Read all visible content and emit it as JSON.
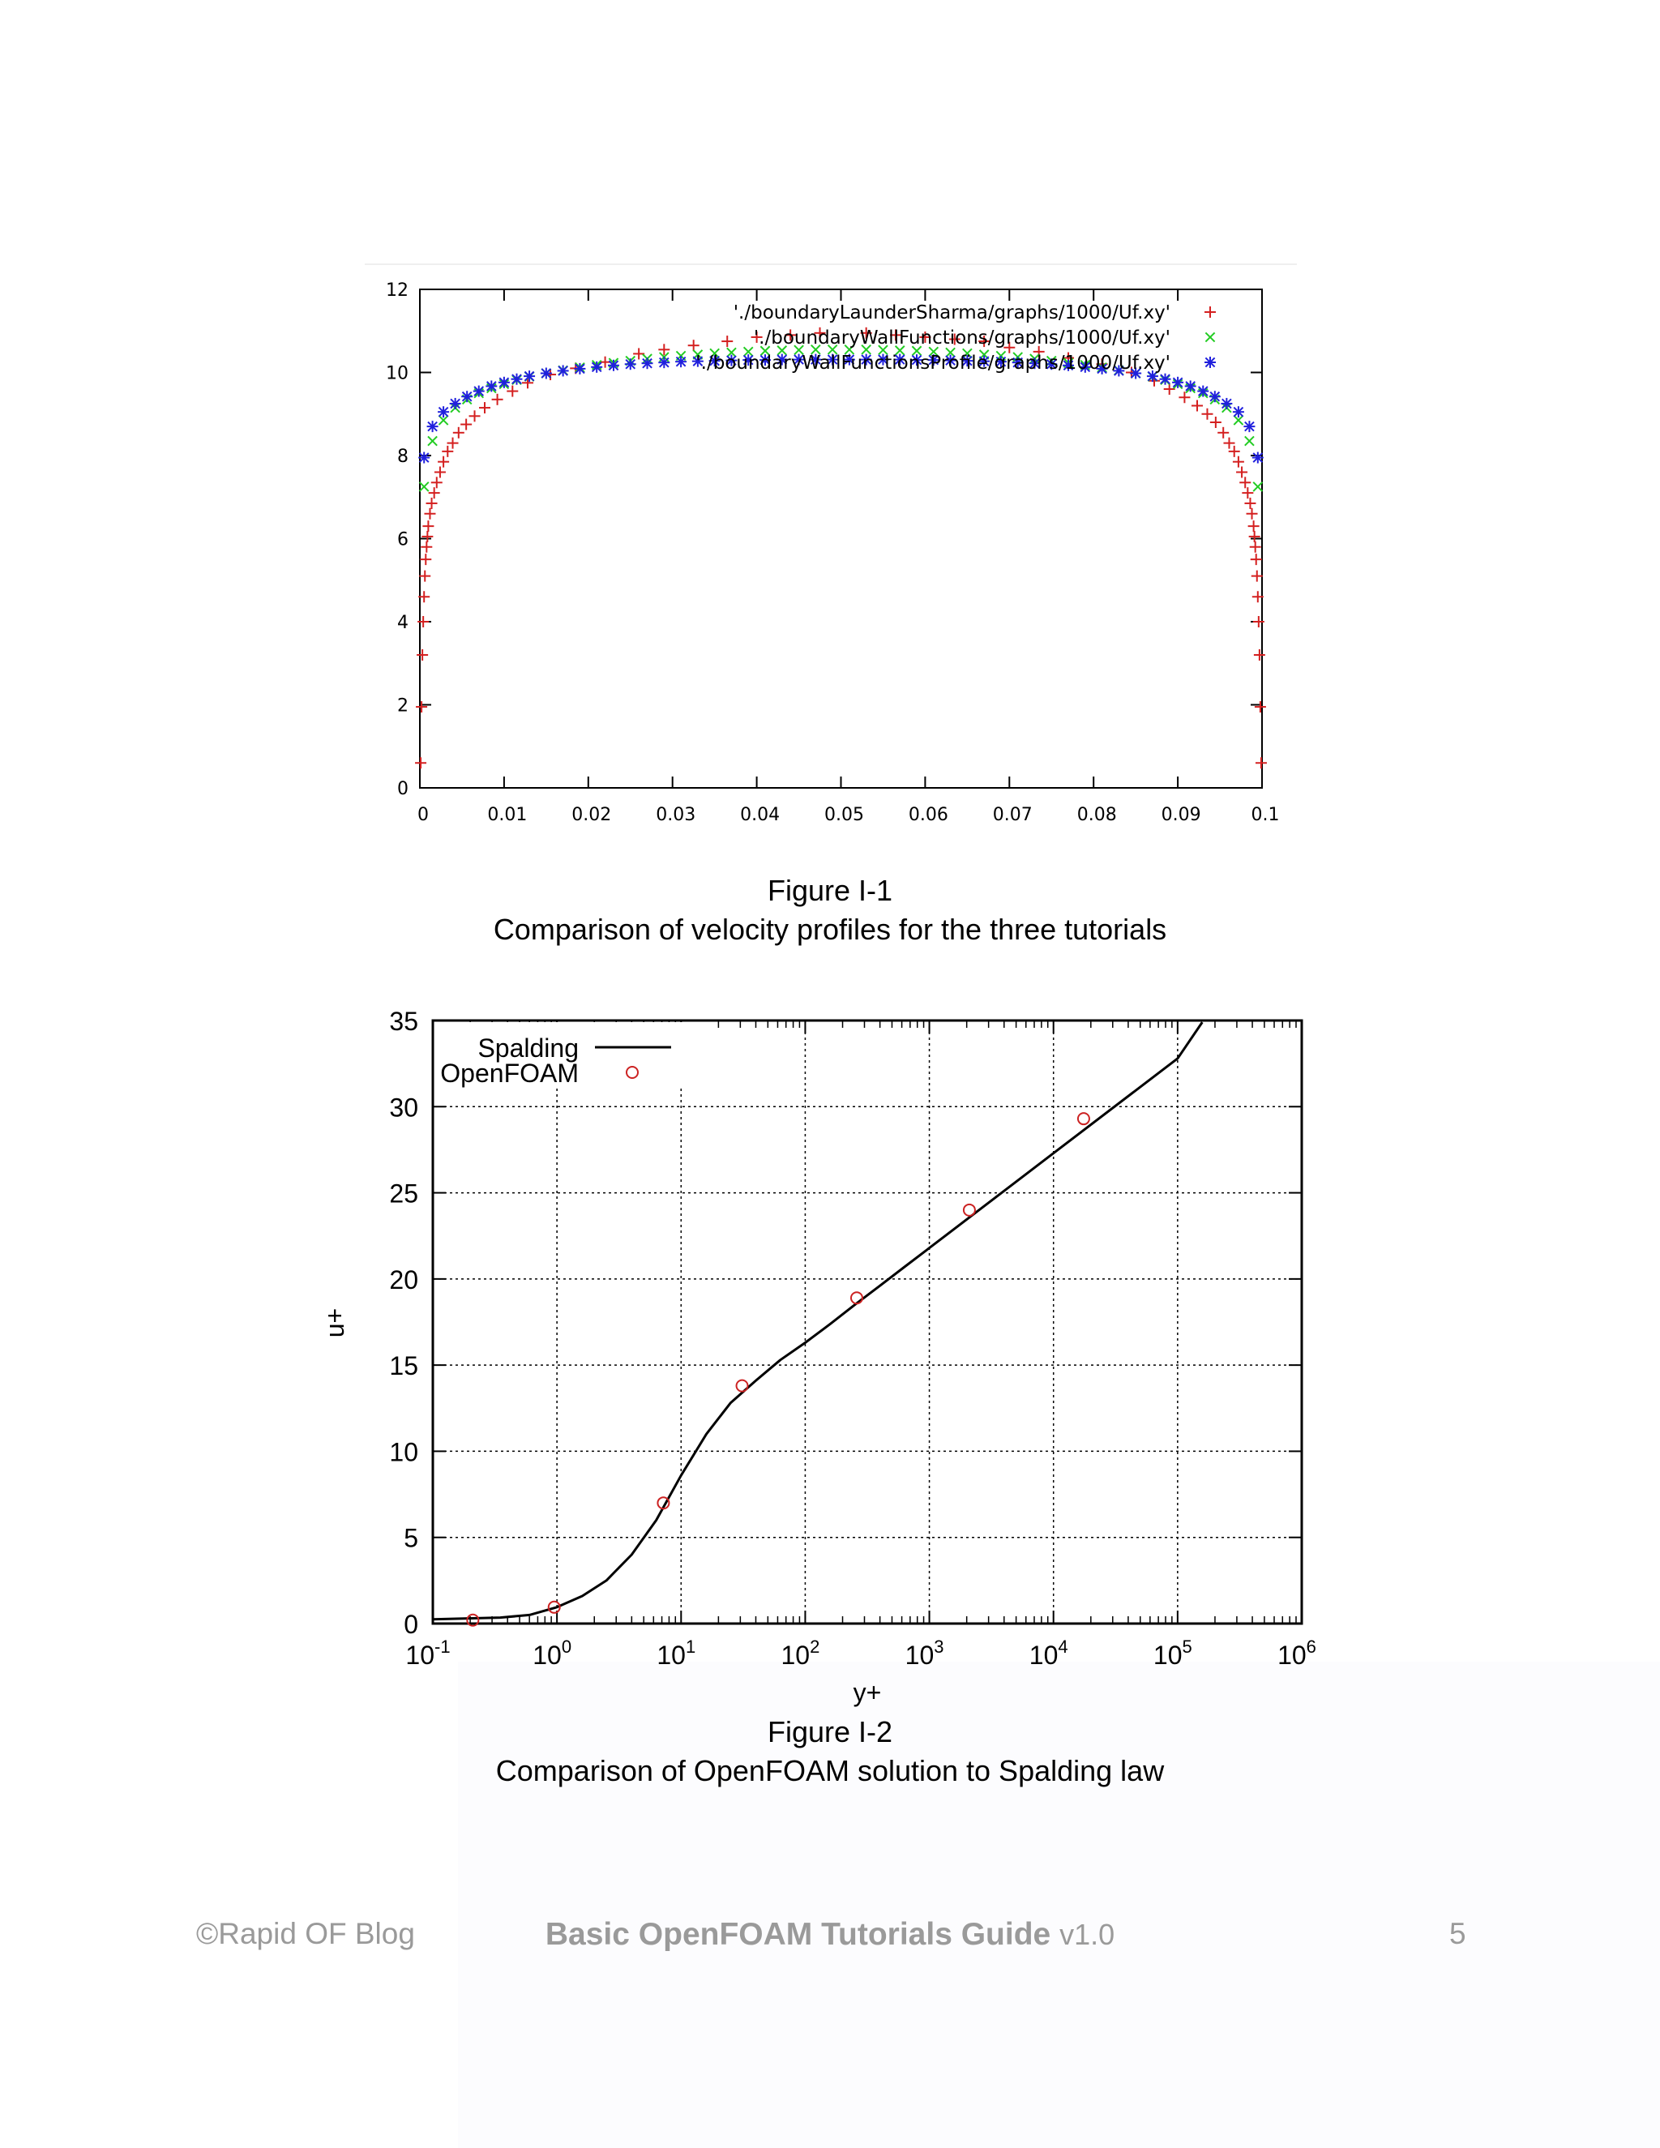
{
  "chart_data": [
    {
      "type": "scatter",
      "title": "",
      "xlabel": "",
      "ylabel": "",
      "xlim": [
        0,
        0.1
      ],
      "ylim": [
        0,
        12
      ],
      "x_ticks": [
        "0",
        "0.01",
        "0.02",
        "0.03",
        "0.04",
        "0.05",
        "0.06",
        "0.07",
        "0.08",
        "0.09",
        "0.1"
      ],
      "y_ticks": [
        "0",
        "2",
        "4",
        "6",
        "8",
        "10",
        "12"
      ],
      "grid": false,
      "legend_position": "top-right",
      "series": [
        {
          "name": "'./boundaryLaunderSharma/graphs/1000/Uf.xy'",
          "marker": "+",
          "color": "#d42020",
          "points": [
            [
              0.0001,
              0.6
            ],
            [
              0.0002,
              1.95
            ],
            [
              0.0003,
              3.2
            ],
            [
              0.0004,
              4.0
            ],
            [
              0.0005,
              4.6
            ],
            [
              0.0006,
              5.1
            ],
            [
              0.0007,
              5.5
            ],
            [
              0.0008,
              5.8
            ],
            [
              0.0009,
              6.05
            ],
            [
              0.001,
              6.3
            ],
            [
              0.0012,
              6.6
            ],
            [
              0.0014,
              6.85
            ],
            [
              0.0017,
              7.1
            ],
            [
              0.002,
              7.35
            ],
            [
              0.0024,
              7.6
            ],
            [
              0.0028,
              7.85
            ],
            [
              0.0033,
              8.1
            ],
            [
              0.0039,
              8.3
            ],
            [
              0.0046,
              8.55
            ],
            [
              0.0055,
              8.75
            ],
            [
              0.0065,
              8.95
            ],
            [
              0.0077,
              9.15
            ],
            [
              0.0092,
              9.35
            ],
            [
              0.011,
              9.55
            ],
            [
              0.0128,
              9.75
            ],
            [
              0.0155,
              9.95
            ],
            [
              0.0185,
              10.1
            ],
            [
              0.022,
              10.25
            ],
            [
              0.026,
              10.45
            ],
            [
              0.029,
              10.55
            ],
            [
              0.0325,
              10.65
            ],
            [
              0.0365,
              10.75
            ],
            [
              0.04,
              10.85
            ],
            [
              0.044,
              10.9
            ],
            [
              0.0475,
              10.95
            ],
            [
              0.053,
              10.95
            ],
            [
              0.0565,
              10.9
            ],
            [
              0.06,
              10.85
            ],
            [
              0.0635,
              10.8
            ],
            [
              0.067,
              10.75
            ],
            [
              0.07,
              10.6
            ],
            [
              0.0735,
              10.5
            ],
            [
              0.077,
              10.35
            ],
            [
              0.081,
              10.2
            ],
            [
              0.0845,
              10.0
            ],
            [
              0.0872,
              9.8
            ],
            [
              0.089,
              9.6
            ],
            [
              0.0908,
              9.4
            ],
            [
              0.0923,
              9.2
            ],
            [
              0.0935,
              9.0
            ],
            [
              0.0945,
              8.8
            ],
            [
              0.0954,
              8.55
            ],
            [
              0.0961,
              8.3
            ],
            [
              0.0967,
              8.1
            ],
            [
              0.0972,
              7.85
            ],
            [
              0.0976,
              7.6
            ],
            [
              0.098,
              7.35
            ],
            [
              0.0983,
              7.1
            ],
            [
              0.0986,
              6.85
            ],
            [
              0.0988,
              6.6
            ],
            [
              0.099,
              6.3
            ],
            [
              0.0991,
              6.05
            ],
            [
              0.0992,
              5.8
            ],
            [
              0.0993,
              5.5
            ],
            [
              0.0994,
              5.1
            ],
            [
              0.0995,
              4.6
            ],
            [
              0.0996,
              4.0
            ],
            [
              0.0997,
              3.2
            ],
            [
              0.0998,
              1.95
            ],
            [
              0.0999,
              0.6
            ]
          ]
        },
        {
          "name": "'./boundaryWallFunctions/graphs/1000/Uf.xy'",
          "marker": "x",
          "color": "#22cc22",
          "points": [
            [
              0.0005,
              7.25
            ],
            [
              0.0015,
              8.35
            ],
            [
              0.0028,
              8.85
            ],
            [
              0.0042,
              9.15
            ],
            [
              0.0056,
              9.35
            ],
            [
              0.007,
              9.5
            ],
            [
              0.0085,
              9.62
            ],
            [
              0.01,
              9.72
            ],
            [
              0.0115,
              9.82
            ],
            [
              0.013,
              9.9
            ],
            [
              0.015,
              9.98
            ],
            [
              0.017,
              10.05
            ],
            [
              0.019,
              10.12
            ],
            [
              0.021,
              10.18
            ],
            [
              0.023,
              10.23
            ],
            [
              0.025,
              10.28
            ],
            [
              0.027,
              10.33
            ],
            [
              0.029,
              10.37
            ],
            [
              0.031,
              10.4
            ],
            [
              0.033,
              10.43
            ],
            [
              0.035,
              10.46
            ],
            [
              0.037,
              10.48
            ],
            [
              0.039,
              10.5
            ],
            [
              0.041,
              10.52
            ],
            [
              0.043,
              10.53
            ],
            [
              0.045,
              10.54
            ],
            [
              0.047,
              10.55
            ],
            [
              0.049,
              10.55
            ],
            [
              0.051,
              10.55
            ],
            [
              0.053,
              10.55
            ],
            [
              0.055,
              10.54
            ],
            [
              0.057,
              10.53
            ],
            [
              0.059,
              10.52
            ],
            [
              0.061,
              10.5
            ],
            [
              0.063,
              10.48
            ],
            [
              0.065,
              10.46
            ],
            [
              0.067,
              10.43
            ],
            [
              0.069,
              10.4
            ],
            [
              0.071,
              10.37
            ],
            [
              0.073,
              10.33
            ],
            [
              0.075,
              10.28
            ],
            [
              0.077,
              10.23
            ],
            [
              0.079,
              10.18
            ],
            [
              0.081,
              10.12
            ],
            [
              0.083,
              10.05
            ],
            [
              0.085,
              9.98
            ],
            [
              0.087,
              9.9
            ],
            [
              0.0885,
              9.82
            ],
            [
              0.09,
              9.72
            ],
            [
              0.0915,
              9.62
            ],
            [
              0.093,
              9.5
            ],
            [
              0.0944,
              9.35
            ],
            [
              0.0958,
              9.15
            ],
            [
              0.0972,
              8.85
            ],
            [
              0.0985,
              8.35
            ],
            [
              0.0995,
              7.25
            ]
          ]
        },
        {
          "name": "'./boundaryWallFunctionsProfile/graphs/1000/Uf.xy'",
          "marker": "*",
          "color": "#2020dd",
          "points": [
            [
              0.0005,
              7.95
            ],
            [
              0.0015,
              8.7
            ],
            [
              0.0028,
              9.05
            ],
            [
              0.0042,
              9.25
            ],
            [
              0.0056,
              9.42
            ],
            [
              0.007,
              9.55
            ],
            [
              0.0085,
              9.67
            ],
            [
              0.01,
              9.76
            ],
            [
              0.0115,
              9.84
            ],
            [
              0.013,
              9.91
            ],
            [
              0.015,
              9.98
            ],
            [
              0.017,
              10.04
            ],
            [
              0.019,
              10.09
            ],
            [
              0.021,
              10.13
            ],
            [
              0.023,
              10.17
            ],
            [
              0.025,
              10.2
            ],
            [
              0.027,
              10.22
            ],
            [
              0.029,
              10.24
            ],
            [
              0.031,
              10.26
            ],
            [
              0.033,
              10.27
            ],
            [
              0.035,
              10.28
            ],
            [
              0.037,
              10.29
            ],
            [
              0.039,
              10.3
            ],
            [
              0.041,
              10.3
            ],
            [
              0.043,
              10.31
            ],
            [
              0.045,
              10.31
            ],
            [
              0.047,
              10.31
            ],
            [
              0.049,
              10.31
            ],
            [
              0.051,
              10.31
            ],
            [
              0.053,
              10.31
            ],
            [
              0.055,
              10.31
            ],
            [
              0.057,
              10.31
            ],
            [
              0.059,
              10.3
            ],
            [
              0.061,
              10.3
            ],
            [
              0.063,
              10.29
            ],
            [
              0.065,
              10.28
            ],
            [
              0.067,
              10.27
            ],
            [
              0.069,
              10.26
            ],
            [
              0.071,
              10.24
            ],
            [
              0.073,
              10.22
            ],
            [
              0.075,
              10.2
            ],
            [
              0.077,
              10.17
            ],
            [
              0.079,
              10.13
            ],
            [
              0.081,
              10.09
            ],
            [
              0.083,
              10.04
            ],
            [
              0.085,
              9.98
            ],
            [
              0.087,
              9.91
            ],
            [
              0.0885,
              9.84
            ],
            [
              0.09,
              9.76
            ],
            [
              0.0915,
              9.67
            ],
            [
              0.093,
              9.55
            ],
            [
              0.0944,
              9.42
            ],
            [
              0.0958,
              9.25
            ],
            [
              0.0972,
              9.05
            ],
            [
              0.0985,
              8.7
            ],
            [
              0.0995,
              7.95
            ]
          ]
        }
      ]
    },
    {
      "type": "line",
      "title": "",
      "xlabel": "y+",
      "ylabel": "u+",
      "x_scale": "log",
      "xlim": [
        0.1,
        1000000
      ],
      "ylim": [
        0,
        35
      ],
      "x_ticks": [
        {
          "base": "10",
          "exp": "-1"
        },
        {
          "base": "10",
          "exp": "0"
        },
        {
          "base": "10",
          "exp": "1"
        },
        {
          "base": "10",
          "exp": "2"
        },
        {
          "base": "10",
          "exp": "3"
        },
        {
          "base": "10",
          "exp": "4"
        },
        {
          "base": "10",
          "exp": "5"
        },
        {
          "base": "10",
          "exp": "6"
        }
      ],
      "y_ticks": [
        "0",
        "5",
        "10",
        "15",
        "20",
        "25",
        "30",
        "35"
      ],
      "grid": true,
      "legend_position": "top-left",
      "series": [
        {
          "name": "Spalding",
          "style": "line",
          "color": "#000000",
          "points": [
            [
              0.1,
              0.25
            ],
            [
              0.35,
              0.35
            ],
            [
              0.6,
              0.5
            ],
            [
              1.0,
              0.95
            ],
            [
              1.6,
              1.6
            ],
            [
              2.5,
              2.5
            ],
            [
              4.0,
              4.0
            ],
            [
              6.3,
              6.0
            ],
            [
              10,
              8.6
            ],
            [
              16,
              11.0
            ],
            [
              25,
              12.8
            ],
            [
              40,
              14.1
            ],
            [
              63,
              15.3
            ],
            [
              100,
              16.3
            ],
            [
              160,
              17.4
            ],
            [
              251,
              18.5
            ],
            [
              398,
              19.6
            ],
            [
              631,
              20.7
            ],
            [
              1000,
              21.8
            ],
            [
              10000,
              27.3
            ],
            [
              100000,
              32.8
            ],
            [
              158000,
              34.9
            ]
          ]
        },
        {
          "name": "OpenFOAM",
          "style": "marker",
          "marker": "circle",
          "color": "#cc2222",
          "points": [
            [
              0.21,
              0.2
            ],
            [
              0.95,
              0.95
            ],
            [
              7.2,
              7.0
            ],
            [
              31,
              13.8
            ],
            [
              260,
              18.9
            ],
            [
              2100,
              24.0
            ],
            [
              17500,
              29.3
            ]
          ]
        }
      ]
    }
  ],
  "captions": {
    "fig1": {
      "label": "Figure I-1",
      "text": "Comparison of velocity profiles for the three tutorials"
    },
    "fig2": {
      "label": "Figure I-2",
      "text": "Comparison of OpenFOAM solution to Spalding law"
    }
  },
  "footer": {
    "left": "©Rapid OF Blog",
    "title": "Basic OpenFOAM Tutorials Guide",
    "version": "v1.0",
    "page_number": "5"
  },
  "colors": {
    "red": "#d42020",
    "green": "#22cc22",
    "blue": "#2020dd",
    "footer_text": "#9a9a9a"
  }
}
